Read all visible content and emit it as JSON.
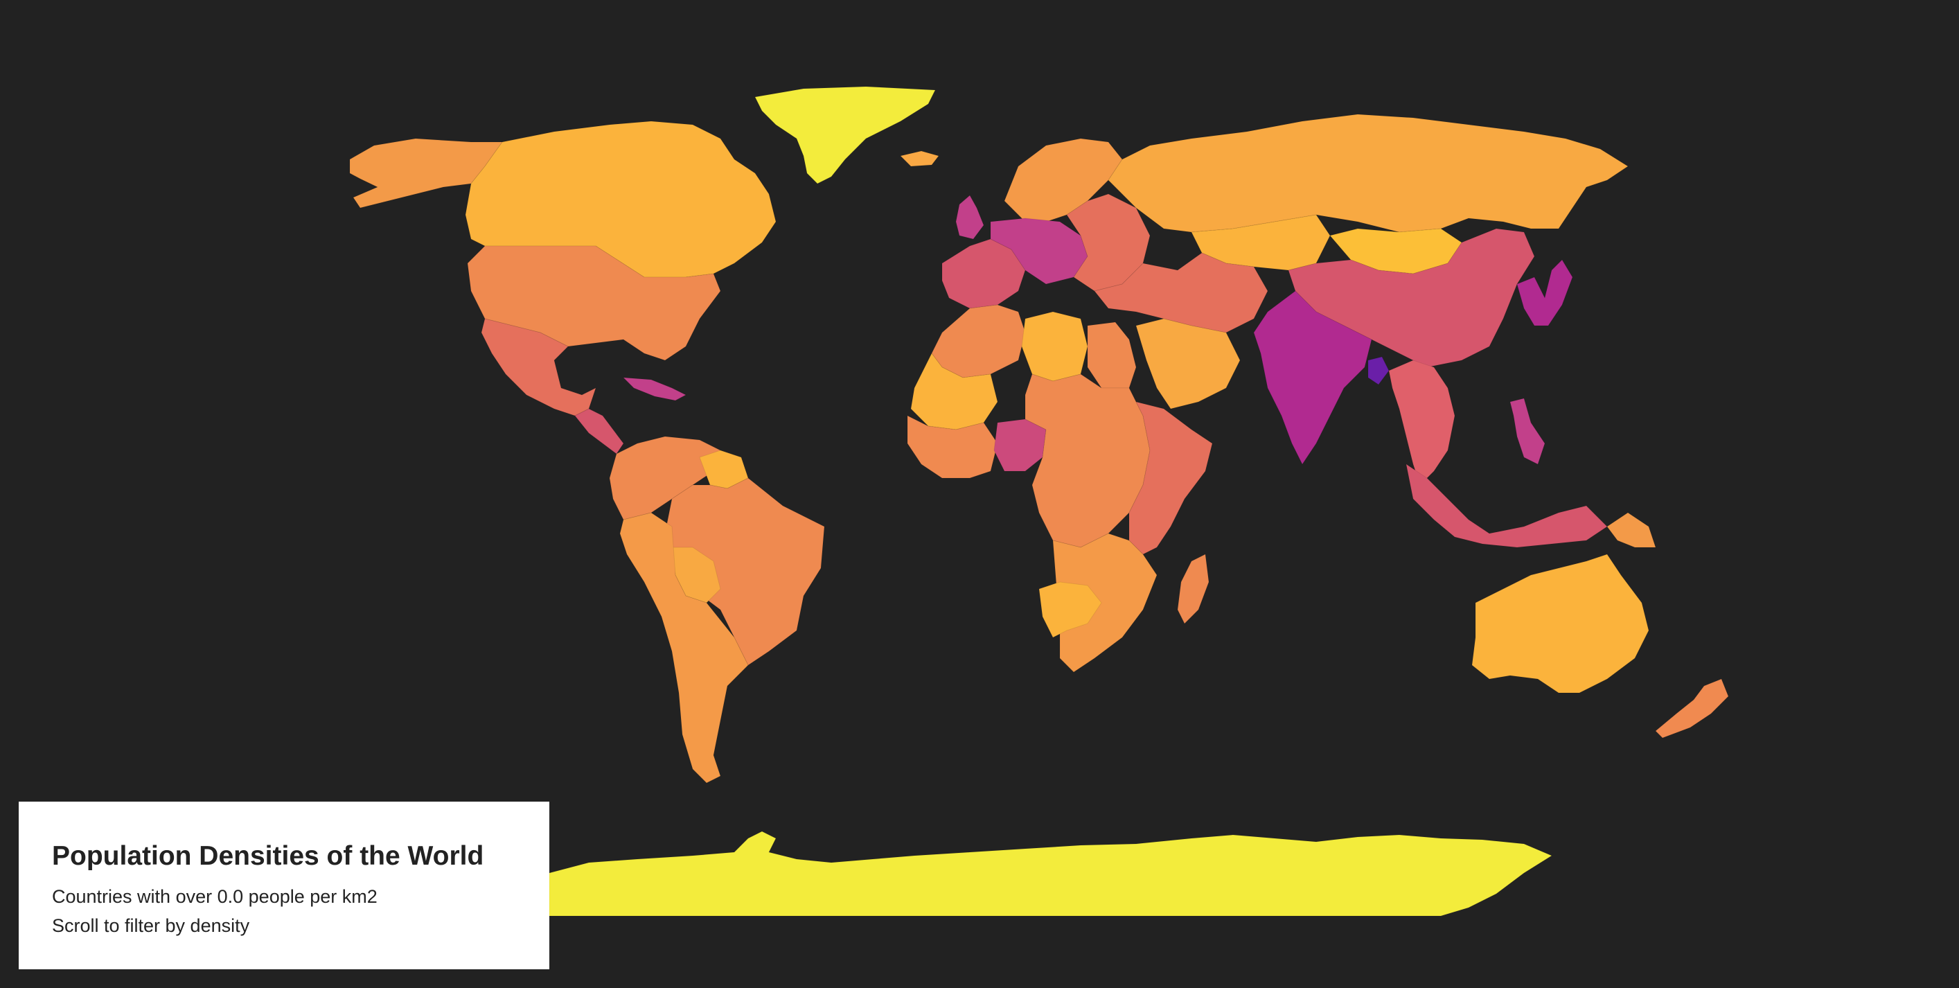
{
  "page": {
    "background": "#222222"
  },
  "legend_panel": {
    "title": "Population Densities of the World",
    "subtitle_prefix": "Countries with over ",
    "min_density": "0.0",
    "subtitle_suffix": " people per km2",
    "instruction": "Scroll to filter by density"
  },
  "color_scale": {
    "name": "plasma",
    "lowest": "#f0f921",
    "low": "#fdb42f",
    "medium_low": "#f89540",
    "medium": "#e16462",
    "medium_high": "#cc4778",
    "high": "#b12a90",
    "highest": "#6a00a8"
  },
  "regions": [
    {
      "name": "Greenland",
      "color": "#f3ec3c"
    },
    {
      "name": "Antarctica",
      "color": "#f3ec3c"
    },
    {
      "name": "Canada",
      "color": "#fbb33c"
    },
    {
      "name": "Alaska",
      "color": "#f39a48"
    },
    {
      "name": "United States",
      "color": "#ef8a50"
    },
    {
      "name": "Mexico",
      "color": "#e5705c"
    },
    {
      "name": "Central America",
      "color": "#d6566c"
    },
    {
      "name": "Caribbean",
      "color": "#c2408a"
    },
    {
      "name": "Venezuela/Colombia",
      "color": "#ef8a50"
    },
    {
      "name": "Guianas",
      "color": "#fbb33c"
    },
    {
      "name": "Brazil",
      "color": "#ef8a50"
    },
    {
      "name": "Bolivia",
      "color": "#f8a942"
    },
    {
      "name": "Southern Cone",
      "color": "#f49a48"
    },
    {
      "name": "Iceland",
      "color": "#f9a844"
    },
    {
      "name": "Scandinavia",
      "color": "#f49a48"
    },
    {
      "name": "United Kingdom",
      "color": "#c2408a"
    },
    {
      "name": "Western Europe",
      "color": "#d6566c"
    },
    {
      "name": "Central Europe",
      "color": "#c2408a"
    },
    {
      "name": "Eastern Europe",
      "color": "#e5705c"
    },
    {
      "name": "Russia",
      "color": "#f8a942"
    },
    {
      "name": "Kazakhstan",
      "color": "#fbb33c"
    },
    {
      "name": "Mongolia",
      "color": "#fcbf37"
    },
    {
      "name": "China",
      "color": "#d6566c"
    },
    {
      "name": "Korea/Japan",
      "color": "#b12a90"
    },
    {
      "name": "Middle East",
      "color": "#e5705c"
    },
    {
      "name": "Arabian Peninsula",
      "color": "#f8a942"
    },
    {
      "name": "India",
      "color": "#b12a90"
    },
    {
      "name": "Bangladesh",
      "color": "#6a1fa8"
    },
    {
      "name": "Southeast Asia",
      "color": "#e0606a"
    },
    {
      "name": "Philippines",
      "color": "#c2408a"
    },
    {
      "name": "Indonesia",
      "color": "#d6566c"
    },
    {
      "name": "North Africa",
      "color": "#ef8a50"
    },
    {
      "name": "Libya",
      "color": "#fbb33c"
    },
    {
      "name": "Egypt",
      "color": "#ef8a50"
    },
    {
      "name": "Mauritania/Mali",
      "color": "#fbb33c"
    },
    {
      "name": "West Africa",
      "color": "#f08a50"
    },
    {
      "name": "Nigeria",
      "color": "#cc4a7c"
    },
    {
      "name": "Central Africa",
      "color": "#ef8a50"
    },
    {
      "name": "East Africa",
      "color": "#e5705c"
    },
    {
      "name": "Southern Africa",
      "color": "#f49a48"
    },
    {
      "name": "Namibia/Botswana",
      "color": "#fbb33c"
    },
    {
      "name": "Madagascar",
      "color": "#ef8a50"
    },
    {
      "name": "Australia",
      "color": "#fbb33c"
    },
    {
      "name": "Papua New Guinea",
      "color": "#f39a48"
    },
    {
      "name": "New Zealand",
      "color": "#f08a50"
    }
  ]
}
